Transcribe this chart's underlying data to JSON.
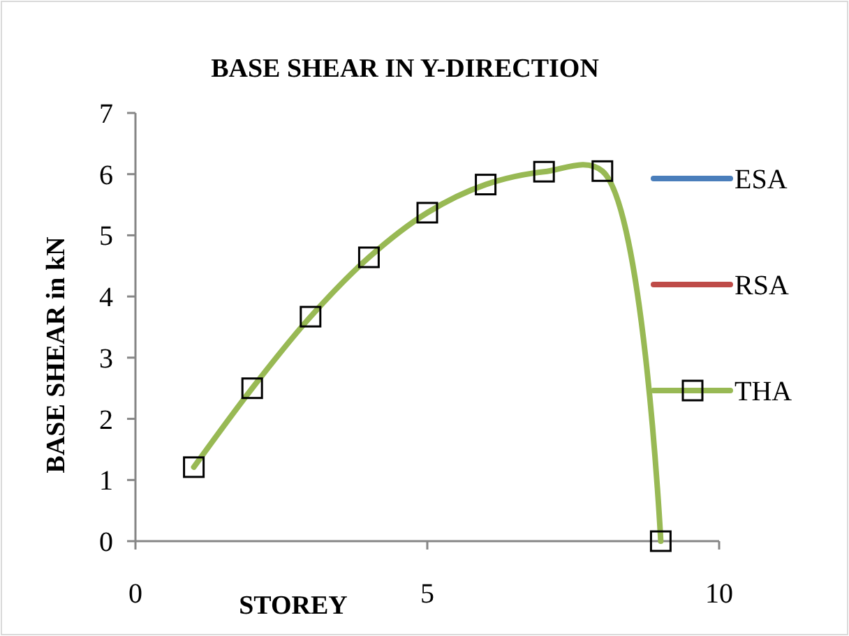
{
  "chart_data": {
    "type": "line",
    "title": "BASE SHEAR IN Y-DIRECTION",
    "xlabel": "STOREY",
    "ylabel": "BASE SHEAR in kN",
    "x": [
      1,
      2,
      3,
      4,
      5,
      6,
      7,
      8,
      9
    ],
    "series": [
      {
        "name": "ESA",
        "color": "#4a7ebb",
        "marker": "none",
        "values": [
          null,
          null,
          null,
          null,
          null,
          null,
          null,
          null,
          null
        ]
      },
      {
        "name": "RSA",
        "color": "#be4b48",
        "marker": "none",
        "values": [
          null,
          null,
          null,
          null,
          null,
          null,
          null,
          null,
          null
        ]
      },
      {
        "name": "THA",
        "color": "#98b954",
        "marker": "square",
        "values": [
          1.21,
          2.5,
          3.67,
          4.64,
          5.37,
          5.83,
          6.04,
          6.05,
          0
        ]
      }
    ],
    "xlim": [
      0,
      10
    ],
    "xticks": [
      0,
      5,
      10
    ],
    "ylim": [
      0,
      7
    ],
    "yticks": [
      0,
      1,
      2,
      3,
      4,
      5,
      6,
      7
    ],
    "grid": false,
    "legend": "right"
  }
}
